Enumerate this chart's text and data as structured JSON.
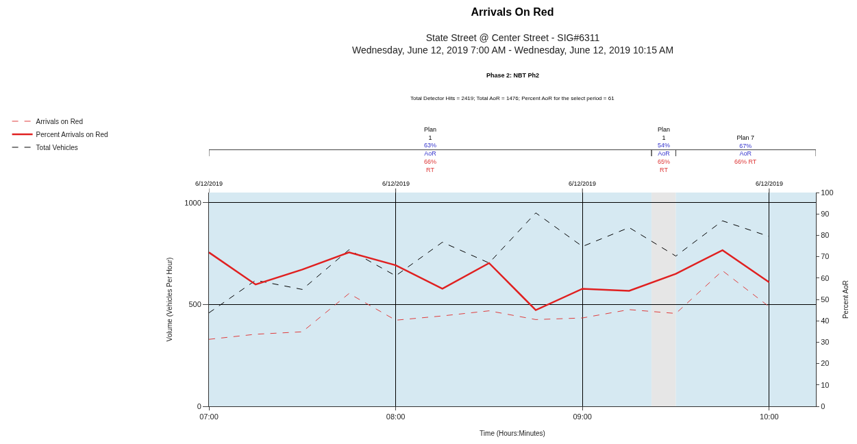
{
  "chart_data": {
    "type": "line",
    "title": "Arrivals On Red",
    "subtitle": "State Street @ Center Street - SIG#6311\nWednesday, June 12, 2019 7:00 AM - Wednesday, June 12, 2019 10:15 AM",
    "annotations": [
      "Phase 2: NBT Ph2",
      "Total Detector Hits = 2419; Total AoR = 1476; Percent AoR for the select period = 61",
      "6/12/2019",
      "6/12/2019",
      "6/12/2019",
      "6/12/2019",
      "Plan\n1\n63%\nAoR\n66%\nRT",
      "Plan\n1\n54%\nAoR\n65%\nRT",
      "Plan 7\n67%\nAoR\n66% RT"
    ],
    "xlabel": "Time (Hours:Minutes)",
    "ylabel": "Volume (Vehicles Per Hour)",
    "y2label": "Percent AoR",
    "x": [
      7.0,
      7.25,
      7.5,
      7.75,
      8.0,
      8.25,
      8.5,
      8.75,
      9.0,
      9.25,
      9.5,
      9.75,
      10.0
    ],
    "series": [
      {
        "name": "Arrivals on Red",
        "color": "#e03c3c",
        "line_style": "dashed",
        "values": [
          329,
          354,
          366,
          554,
          423,
          444,
          469,
          426,
          434,
          475,
          456,
          666,
          489
        ]
      },
      {
        "name": "Percent Arrivals on Red",
        "color": "#e02020",
        "line_style": "solid",
        "axis": "y2",
        "values": [
          72,
          57,
          64,
          72,
          66,
          55,
          67,
          45,
          55,
          54,
          62,
          73,
          58
        ]
      },
      {
        "name": "Total Vehicles",
        "color": "#000000",
        "line_style": "dashed",
        "values": [
          459,
          619,
          574,
          769,
          641,
          806,
          704,
          950,
          785,
          878,
          738,
          911,
          834
        ]
      }
    ],
    "xlim": [
      7,
      10.25
    ],
    "xticks": [
      {
        "value": 7,
        "label": "07:00"
      },
      {
        "value": 8,
        "label": "08:00"
      },
      {
        "value": 9,
        "label": "09:00"
      },
      {
        "value": 10,
        "label": "10:00"
      }
    ],
    "ylim": [
      0,
      1050
    ],
    "yticks": [
      0,
      500,
      1000
    ],
    "y2lim": [
      0,
      100
    ],
    "y2ticks": [
      0,
      10,
      20,
      30,
      40,
      50,
      60,
      70,
      80,
      90,
      100
    ],
    "bands": [
      {
        "axis": "x",
        "from": 7,
        "to": 9.37,
        "color": "#d6e9f2"
      },
      {
        "axis": "x",
        "from": 9.37,
        "to": 9.5,
        "color": "#e6e6e6"
      },
      {
        "axis": "x",
        "from": 9.5,
        "to": 10.25,
        "color": "#d6e9f2"
      }
    ],
    "grid": true,
    "legend": "top left",
    "marker": "none"
  }
}
